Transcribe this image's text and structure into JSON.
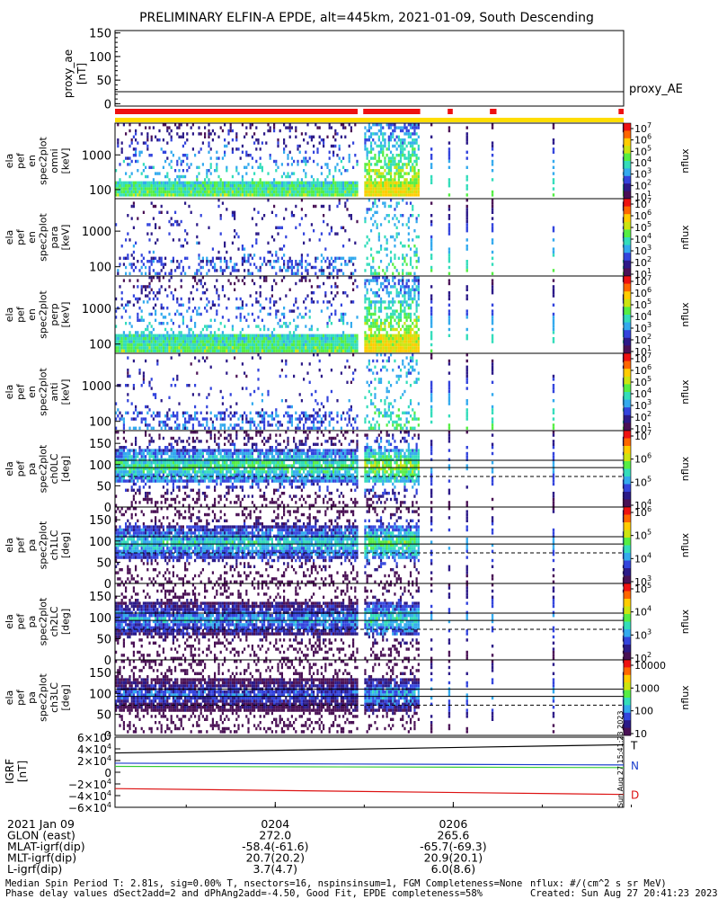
{
  "title": "PRELIMINARY ELFIN-A EPDE, alt=445km, 2021-01-09, South Descending",
  "colors": {
    "red_bar": "#ee1111",
    "yellow_bar": "#ffdd00",
    "igrf_t": "#000000",
    "igrf_n_blue": "#1a3dcc",
    "igrf_n_green": "#33cc33",
    "igrf_d": "#dd1111",
    "spectrum_ramp": [
      "#4a1155",
      "#2c1a88",
      "#3344dd",
      "#33aaee",
      "#33ddbb",
      "#55ee44",
      "#cce411",
      "#ffcc00",
      "#ff6600",
      "#ee1111"
    ]
  },
  "chart_data": [
    {
      "type": "line",
      "panel": "proxy_ae",
      "ylabel": "proxy_ae [nT]",
      "ylim": [
        -5,
        155
      ],
      "yticks": [
        "150",
        "100",
        "50",
        "0"
      ],
      "series": [
        {
          "name": "proxy_AE",
          "values": [
            30,
            30
          ]
        }
      ]
    },
    {
      "type": "heatmap",
      "panel": "energy-spectra",
      "ylabels": [
        "ela pef en spec2plot omni [keV]",
        "ela pef en spec2plot para [keV]",
        "ela pef en spec2plot perp [keV]",
        "ela pef en spec2plot anti [keV]"
      ],
      "yticks": [
        "1000",
        "100"
      ],
      "colorbar": {
        "label": "nflux",
        "ticks": [
          "10^7",
          "10^6",
          "10^5",
          "10^4",
          "10^3",
          "10^2",
          "10^1"
        ]
      }
    },
    {
      "type": "heatmap",
      "panel": "pitch-angle-spectra",
      "ylabels": [
        "ela pef pa spec2plot ch0LC [deg]",
        "ela pef pa spec2plot ch1LC [deg]",
        "ela pef pa spec2plot ch2LC [deg]",
        "ela pef pa spec2plot ch3LC [deg]"
      ],
      "yticks": [
        "150",
        "100",
        "50",
        "0"
      ],
      "ylim": [
        0,
        180
      ],
      "colorbars": [
        {
          "label": "nflux",
          "ticks": [
            "10^7",
            "10^6",
            "10^5",
            "10^4"
          ]
        },
        {
          "label": "nflux",
          "ticks": [
            "10^6",
            "10^5",
            "10^4",
            "10^3"
          ]
        },
        {
          "label": "nflux",
          "ticks": [
            "10^5",
            "10^4",
            "10^3",
            "10^2"
          ]
        },
        {
          "label": "nflux",
          "ticks": [
            "10000",
            "1000",
            "100",
            "10"
          ]
        }
      ]
    },
    {
      "type": "line",
      "panel": "IGRF",
      "ylabel": "IGRF [nT]",
      "ylim": [
        -60000,
        60000
      ],
      "yticks": [
        "6×10^4",
        "4×10^4",
        "2×10^4",
        "0",
        "−2×10^4",
        "−4×10^4",
        "−6×10^4"
      ],
      "series": [
        {
          "name": "T",
          "values": [
            33000,
            47000
          ]
        },
        {
          "name": "N",
          "values": [
            15500,
            12500
          ]
        },
        {
          "name": "N",
          "values": [
            10000,
            8000
          ]
        },
        {
          "name": "D",
          "values": [
            -28000,
            -38000
          ]
        }
      ]
    }
  ],
  "created_vertical": "Sun Aug 27 15:41:23 2023",
  "axis_rows": {
    "labels": [
      "2021 Jan 09",
      "GLON (east)",
      "MLAT-igrf(dip)",
      "MLT-igrf(dip)",
      "L-igrf(dip)"
    ],
    "tick1": [
      "0204",
      "272.0",
      "-58.4(-61.6)",
      "20.7(20.2)",
      "3.7(4.7)"
    ],
    "tick2": [
      "0206",
      "265.6",
      "-65.7(-69.3)",
      "20.9(20.1)",
      "6.0(8.6)"
    ]
  },
  "footer": {
    "line1": "Median Spin Period T: 2.81s, sig=0.00% T, nsectors=16, nspinsinsum=1, FGM Completeness=None",
    "line2": "Phase delay values dSect2add=2 and dPhAng2add=-4.50, Good Fit, EPDE completeness=58%",
    "units": "nflux: #/(cm^2 s sr MeV)",
    "created": "Created: Sun Aug 27 20:41:23 2023"
  }
}
